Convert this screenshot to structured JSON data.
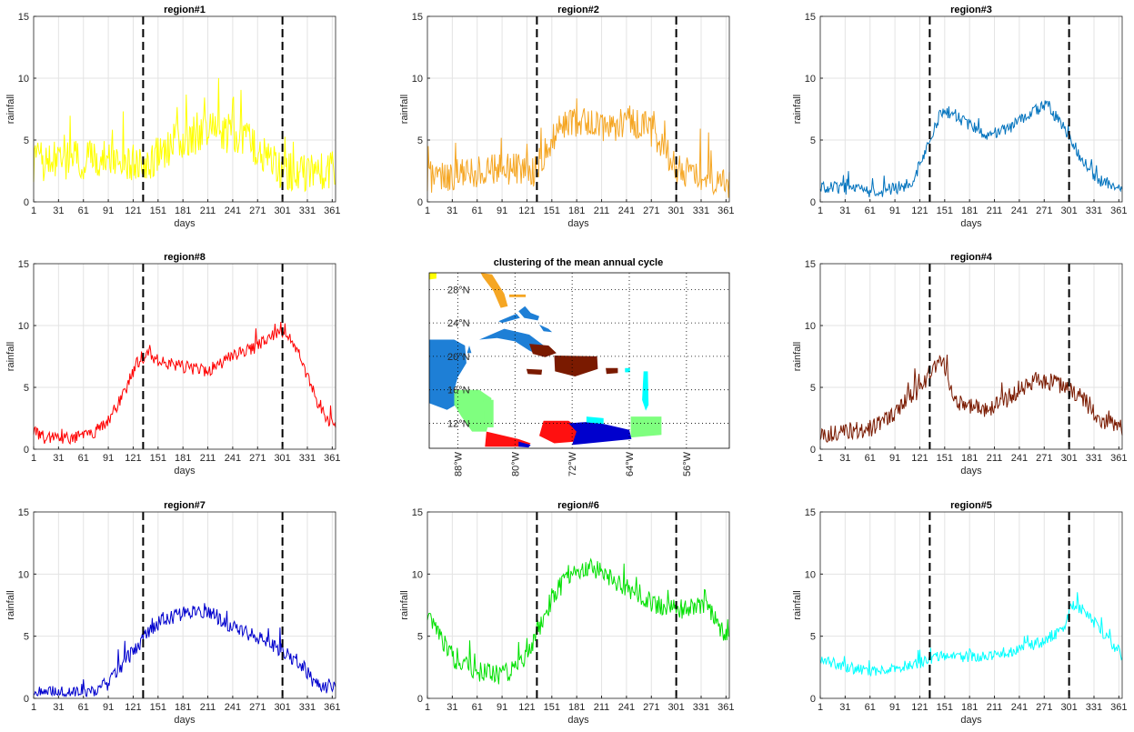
{
  "figure": {
    "map_title": "clustering of the mean annual cycle",
    "xlabel": "days",
    "ylabel": "rainfall",
    "xticks": [
      "1",
      "31",
      "61",
      "91",
      "121",
      "151",
      "181",
      "211",
      "241",
      "271",
      "301",
      "331",
      "361"
    ],
    "yticks": [
      "0",
      "5",
      "10",
      "15"
    ]
  },
  "chart_data": [
    {
      "type": "line",
      "title": "region#1",
      "color": "#ffff00",
      "xlabel": "days",
      "ylabel": "rainfall",
      "xlim": [
        1,
        365
      ],
      "ylim": [
        0,
        15
      ],
      "grid": true,
      "vlines": [
        133,
        301
      ],
      "keypoints": [
        [
          1,
          3.2
        ],
        [
          30,
          3.4
        ],
        [
          60,
          3.3
        ],
        [
          90,
          3.6
        ],
        [
          115,
          3.2
        ],
        [
          133,
          2.8
        ],
        [
          150,
          3.8
        ],
        [
          175,
          5.0
        ],
        [
          200,
          5.5
        ],
        [
          225,
          5.7
        ],
        [
          255,
          5.2
        ],
        [
          275,
          4.2
        ],
        [
          295,
          2.7
        ],
        [
          310,
          2.4
        ],
        [
          340,
          2.5
        ],
        [
          365,
          2.5
        ]
      ],
      "noise": 1.6
    },
    {
      "type": "line",
      "title": "region#2",
      "color": "#f5a623",
      "xlabel": "days",
      "ylabel": "rainfall",
      "xlim": [
        1,
        365
      ],
      "ylim": [
        0,
        15
      ],
      "grid": true,
      "vlines": [
        133,
        301
      ],
      "keypoints": [
        [
          1,
          2.0
        ],
        [
          40,
          2.2
        ],
        [
          80,
          2.6
        ],
        [
          110,
          2.6
        ],
        [
          130,
          2.3
        ],
        [
          145,
          4.5
        ],
        [
          165,
          6.2
        ],
        [
          185,
          6.4
        ],
        [
          215,
          5.8
        ],
        [
          245,
          6.6
        ],
        [
          265,
          6.2
        ],
        [
          285,
          4.5
        ],
        [
          301,
          2.6
        ],
        [
          330,
          2.2
        ],
        [
          365,
          1.6
        ]
      ],
      "noise": 1.3
    },
    {
      "type": "line",
      "title": "region#3",
      "color": "#0072bd",
      "xlabel": "days",
      "ylabel": "rainfall",
      "xlim": [
        1,
        365
      ],
      "ylim": [
        0,
        15
      ],
      "grid": true,
      "vlines": [
        133,
        301
      ],
      "keypoints": [
        [
          1,
          1.3
        ],
        [
          40,
          1.0
        ],
        [
          70,
          0.8
        ],
        [
          100,
          1.2
        ],
        [
          115,
          1.8
        ],
        [
          122,
          3.3
        ],
        [
          133,
          4.8
        ],
        [
          145,
          7.0
        ],
        [
          160,
          7.3
        ],
        [
          175,
          6.4
        ],
        [
          200,
          5.4
        ],
        [
          225,
          5.8
        ],
        [
          255,
          7.2
        ],
        [
          275,
          7.8
        ],
        [
          290,
          6.4
        ],
        [
          301,
          5.3
        ],
        [
          315,
          3.6
        ],
        [
          335,
          1.8
        ],
        [
          365,
          1.2
        ]
      ],
      "noise": 0.5
    },
    {
      "type": "line",
      "title": "region#8",
      "color": "#ff0000",
      "xlabel": "days",
      "ylabel": "rainfall",
      "xlim": [
        1,
        365
      ],
      "ylim": [
        0,
        15
      ],
      "grid": true,
      "vlines": [
        133,
        301
      ],
      "keypoints": [
        [
          1,
          1.5
        ],
        [
          15,
          0.9
        ],
        [
          45,
          0.9
        ],
        [
          70,
          1.2
        ],
        [
          90,
          2.2
        ],
        [
          110,
          4.5
        ],
        [
          125,
          7.0
        ],
        [
          140,
          7.6
        ],
        [
          155,
          7.0
        ],
        [
          180,
          6.7
        ],
        [
          210,
          6.3
        ],
        [
          240,
          7.5
        ],
        [
          270,
          8.3
        ],
        [
          295,
          9.4
        ],
        [
          305,
          9.6
        ],
        [
          320,
          7.8
        ],
        [
          340,
          4.3
        ],
        [
          355,
          2.3
        ],
        [
          365,
          2.1
        ]
      ],
      "noise": 0.5
    },
    {
      "type": "line",
      "title": "region#4",
      "color": "#7a1a00",
      "xlabel": "days",
      "ylabel": "rainfall",
      "xlim": [
        1,
        365
      ],
      "ylim": [
        0,
        15
      ],
      "grid": true,
      "vlines": [
        133,
        301
      ],
      "keypoints": [
        [
          1,
          1.1
        ],
        [
          30,
          1.5
        ],
        [
          60,
          1.6
        ],
        [
          85,
          2.5
        ],
        [
          105,
          4.0
        ],
        [
          125,
          5.0
        ],
        [
          135,
          6.5
        ],
        [
          150,
          7.2
        ],
        [
          158,
          4.3
        ],
        [
          175,
          3.5
        ],
        [
          200,
          3.2
        ],
        [
          230,
          4.2
        ],
        [
          260,
          5.6
        ],
        [
          285,
          5.4
        ],
        [
          301,
          4.8
        ],
        [
          315,
          4.4
        ],
        [
          335,
          2.5
        ],
        [
          365,
          1.8
        ]
      ],
      "noise": 0.7
    },
    {
      "type": "line",
      "title": "region#7",
      "color": "#0000cd",
      "xlabel": "days",
      "ylabel": "rainfall",
      "xlim": [
        1,
        365
      ],
      "ylim": [
        0,
        15
      ],
      "grid": true,
      "vlines": [
        133,
        301
      ],
      "keypoints": [
        [
          1,
          0.5
        ],
        [
          40,
          0.3
        ],
        [
          75,
          0.4
        ],
        [
          95,
          1.5
        ],
        [
          115,
          3.3
        ],
        [
          135,
          5.0
        ],
        [
          155,
          6.3
        ],
        [
          185,
          6.9
        ],
        [
          210,
          7.1
        ],
        [
          240,
          5.8
        ],
        [
          270,
          4.9
        ],
        [
          301,
          3.8
        ],
        [
          320,
          3.0
        ],
        [
          340,
          1.3
        ],
        [
          365,
          0.7
        ]
      ],
      "noise": 0.6
    },
    {
      "type": "line",
      "title": "region#6",
      "color": "#00e000",
      "xlabel": "days",
      "ylabel": "rainfall",
      "xlim": [
        1,
        365
      ],
      "ylim": [
        0,
        15
      ],
      "grid": true,
      "vlines": [
        133,
        301
      ],
      "keypoints": [
        [
          1,
          6.5
        ],
        [
          15,
          5.2
        ],
        [
          35,
          3.0
        ],
        [
          60,
          2.2
        ],
        [
          90,
          1.8
        ],
        [
          115,
          2.8
        ],
        [
          133,
          5.3
        ],
        [
          155,
          8.6
        ],
        [
          180,
          10.2
        ],
        [
          200,
          10.5
        ],
        [
          225,
          9.5
        ],
        [
          250,
          8.4
        ],
        [
          275,
          7.6
        ],
        [
          301,
          7.1
        ],
        [
          320,
          7.4
        ],
        [
          340,
          7.3
        ],
        [
          355,
          5.6
        ],
        [
          365,
          4.9
        ]
      ],
      "noise": 0.8
    },
    {
      "type": "line",
      "title": "region#5",
      "color": "#00ffff",
      "xlabel": "days",
      "ylabel": "rainfall",
      "xlim": [
        1,
        365
      ],
      "ylim": [
        0,
        15
      ],
      "grid": true,
      "vlines": [
        133,
        301
      ],
      "keypoints": [
        [
          1,
          3.1
        ],
        [
          30,
          2.6
        ],
        [
          60,
          2.1
        ],
        [
          90,
          2.4
        ],
        [
          120,
          2.8
        ],
        [
          150,
          3.5
        ],
        [
          180,
          3.3
        ],
        [
          210,
          3.5
        ],
        [
          240,
          3.9
        ],
        [
          270,
          4.6
        ],
        [
          295,
          5.6
        ],
        [
          305,
          7.6
        ],
        [
          320,
          7.0
        ],
        [
          345,
          5.0
        ],
        [
          365,
          3.5
        ]
      ],
      "noise": 0.45
    }
  ],
  "map": {
    "xlim": [
      -92,
      -50
    ],
    "ylim": [
      9,
      30
    ],
    "xticks": [
      "88°W",
      "80°W",
      "72°W",
      "64°W",
      "56°W"
    ],
    "yticks": [
      "12°N",
      "16°N",
      "20°N",
      "24°N",
      "28°N"
    ],
    "regions": [
      {
        "name": "region#1",
        "color": "#ffff00"
      },
      {
        "name": "region#2",
        "color": "#f5a623"
      },
      {
        "name": "region#3",
        "color": "#1e7fd6"
      },
      {
        "name": "region#4",
        "color": "#7a1a00"
      },
      {
        "name": "region#5",
        "color": "#00ffff"
      },
      {
        "name": "region#6",
        "color": "#7fff7f"
      },
      {
        "name": "region#7",
        "color": "#0000cd"
      },
      {
        "name": "region#8",
        "color": "#ff1010"
      }
    ]
  }
}
